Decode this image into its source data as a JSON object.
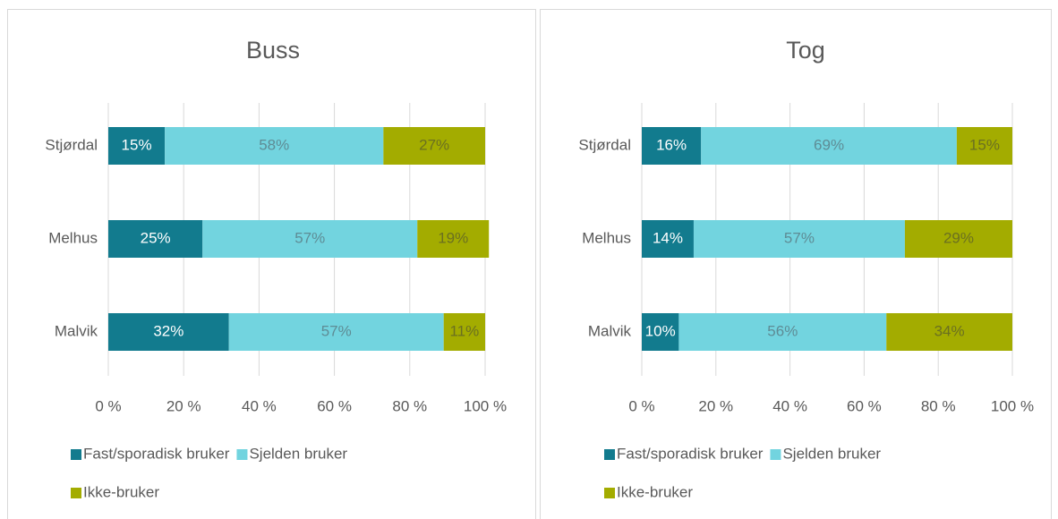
{
  "chart_data": [
    {
      "type": "bar",
      "orientation": "horizontal",
      "stacked": true,
      "title": "Buss",
      "categories": [
        "Stjørdal",
        "Melhus",
        "Malvik"
      ],
      "series": [
        {
          "name": "Fast/sporadisk bruker",
          "color": "#127b8e",
          "values": [
            15,
            25,
            32
          ],
          "value_labels": [
            "15%",
            "25%",
            "32%"
          ]
        },
        {
          "name": "Sjelden bruker",
          "color": "#72d4df",
          "values": [
            58,
            57,
            57
          ],
          "value_labels": [
            "58%",
            "57%",
            "57%"
          ]
        },
        {
          "name": "Ikke-bruker",
          "color": "#a3ac00",
          "values": [
            27,
            19,
            11
          ],
          "value_labels": [
            "27%",
            "19%",
            "11%"
          ]
        }
      ],
      "xlim": [
        0,
        100
      ],
      "xticks": [
        {
          "value": 0,
          "label": "0 %"
        },
        {
          "value": 20,
          "label": "20 %"
        },
        {
          "value": 40,
          "label": "40 %"
        },
        {
          "value": 60,
          "label": "60 %"
        },
        {
          "value": 80,
          "label": "80 %"
        },
        {
          "value": 100,
          "label": "100 %"
        }
      ],
      "grid": true,
      "legend": "bottom"
    },
    {
      "type": "bar",
      "orientation": "horizontal",
      "stacked": true,
      "title": "Tog",
      "categories": [
        "Stjørdal",
        "Melhus",
        "Malvik"
      ],
      "series": [
        {
          "name": "Fast/sporadisk bruker",
          "color": "#127b8e",
          "values": [
            16,
            14,
            10
          ],
          "value_labels": [
            "16%",
            "14%",
            "10%"
          ]
        },
        {
          "name": "Sjelden bruker",
          "color": "#72d4df",
          "values": [
            69,
            57,
            56
          ],
          "value_labels": [
            "69%",
            "57%",
            "56%"
          ]
        },
        {
          "name": "Ikke-bruker",
          "color": "#a3ac00",
          "values": [
            15,
            29,
            34
          ],
          "value_labels": [
            "15%",
            "29%",
            "34%"
          ]
        }
      ],
      "xlim": [
        0,
        100
      ],
      "xticks": [
        {
          "value": 0,
          "label": "0 %"
        },
        {
          "value": 20,
          "label": "20 %"
        },
        {
          "value": 40,
          "label": "40 %"
        },
        {
          "value": 60,
          "label": "60 %"
        },
        {
          "value": 80,
          "label": "80 %"
        },
        {
          "value": 100,
          "label": "100 %"
        }
      ],
      "grid": true,
      "legend": "bottom"
    }
  ]
}
